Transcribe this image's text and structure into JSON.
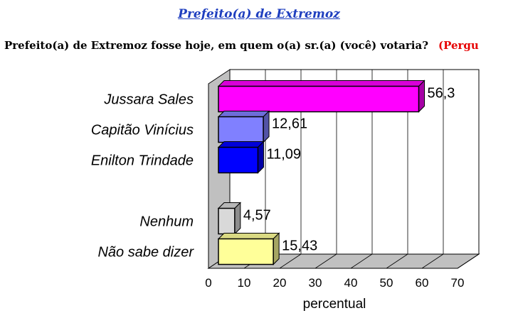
{
  "header": {
    "title": "Prefeito(a) de Extremoz",
    "question": "Prefeito(a) de Extremoz fosse hoje, em quem o(a) sr.(a) (você) votaria?",
    "question_tag": "(Pergu"
  },
  "chart_data": {
    "type": "bar",
    "orientation": "horizontal",
    "categories": [
      "Jussara Sales",
      "Capitão Vinícius",
      "Enilton Trindade",
      "",
      "Nenhum",
      "Não sabe dizer"
    ],
    "values": [
      56.3,
      12.61,
      11.09,
      null,
      4.57,
      15.43
    ],
    "value_labels": [
      "56,3",
      "12,61",
      "11,09",
      "",
      "4,57",
      "15,43"
    ],
    "colors": [
      "#ff00ff",
      "#8080ff",
      "#0000ff",
      "",
      "#d9d9d9",
      "#ffff99"
    ],
    "xlabel": "percentual",
    "xlim": [
      0,
      70
    ],
    "xticks": [
      0,
      10,
      20,
      30,
      40,
      50,
      60,
      70
    ],
    "grid": true,
    "style": "3d"
  }
}
